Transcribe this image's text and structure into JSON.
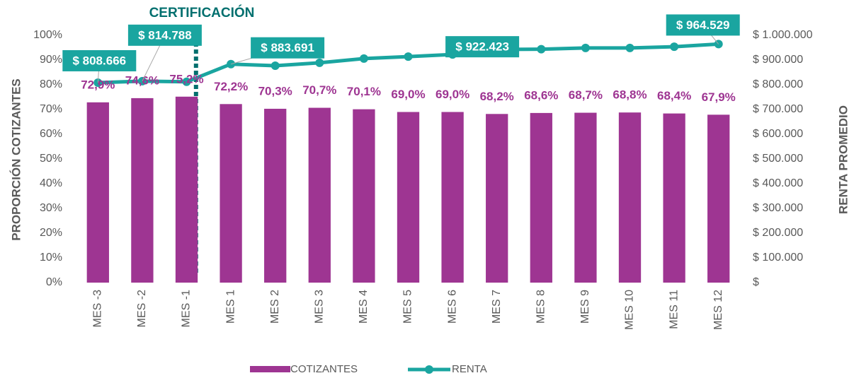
{
  "chart_data": {
    "type": "bar",
    "categories": [
      "MES -3",
      "MES -2",
      "MES -1",
      "MES 1",
      "MES 2",
      "MES 3",
      "MES 4",
      "MES 5",
      "MES 6",
      "MES 7",
      "MES 8",
      "MES 9",
      "MES 10",
      "MES 11",
      "MES 12"
    ],
    "series": [
      {
        "name": "COTIZANTES",
        "color": "#9e3592",
        "type": "bar",
        "values": [
          72.9,
          74.6,
          75.2,
          72.2,
          70.3,
          70.7,
          70.1,
          69.0,
          69.0,
          68.2,
          68.6,
          68.7,
          68.8,
          68.4,
          67.9
        ],
        "value_labels": [
          "72,9%",
          "74,6%",
          "75,2%",
          "72,2%",
          "70,3%",
          "70,7%",
          "70,1%",
          "69,0%",
          "69,0%",
          "68,2%",
          "68,6%",
          "68,7%",
          "68,8%",
          "68,4%",
          "67,9%"
        ]
      },
      {
        "name": "RENTA",
        "color": "#1aa5a0",
        "type": "line",
        "axis": "y2",
        "values": [
          808666,
          814788,
          812000,
          883691,
          877000,
          889000,
          906000,
          914000,
          922423,
          943000,
          944000,
          949000,
          949000,
          954000,
          964529
        ],
        "value_labels": [
          "$ 808.666",
          "$ 814.788",
          null,
          "$ 883.691",
          null,
          null,
          null,
          null,
          "$ 922.423",
          null,
          null,
          null,
          null,
          null,
          "$ 964.529"
        ]
      }
    ],
    "ylabel": "PROPORCIÓN COTIZANTES",
    "y2label": "RENTA PROMEDIO",
    "annotation": "CERTIFICACIÓN",
    "ylim": [
      0,
      100
    ],
    "yticks": [
      {
        "value": 0,
        "label": "0%"
      },
      {
        "value": 10,
        "label": "10%"
      },
      {
        "value": 20,
        "label": "20%"
      },
      {
        "value": 30,
        "label": "30%"
      },
      {
        "value": 40,
        "label": "40%"
      },
      {
        "value": 50,
        "label": "50%"
      },
      {
        "value": 60,
        "label": "60%"
      },
      {
        "value": 70,
        "label": "70%"
      },
      {
        "value": 80,
        "label": "80%"
      },
      {
        "value": 90,
        "label": "90%"
      },
      {
        "value": 100,
        "label": "100%"
      }
    ],
    "y2lim": [
      0,
      1000000
    ],
    "y2ticks": [
      {
        "value": 0,
        "label": "$"
      },
      {
        "value": 100000,
        "label": "$ 100.000"
      },
      {
        "value": 200000,
        "label": "$ 200.000"
      },
      {
        "value": 300000,
        "label": "$ 300.000"
      },
      {
        "value": 400000,
        "label": "$ 400.000"
      },
      {
        "value": 500000,
        "label": "$ 500.000"
      },
      {
        "value": 600000,
        "label": "$ 600.000"
      },
      {
        "value": 700000,
        "label": "$ 700.000"
      },
      {
        "value": 800000,
        "label": "$ 800.000"
      },
      {
        "value": 900000,
        "label": "$ 900.000"
      },
      {
        "value": 1000000,
        "label": "$ 1.000.000"
      }
    ],
    "legend": "bottom"
  }
}
